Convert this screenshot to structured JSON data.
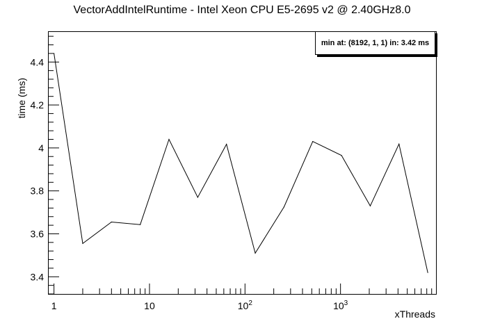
{
  "chart_data": {
    "type": "line",
    "title": "VectorAddIntelRuntime - Intel Xeon CPU E5-2695 v2 @ 2.40GHz8.0",
    "xlabel": "xThreads",
    "ylabel": "time (ms)",
    "x_scale": "log",
    "xlim": [
      0.88,
      10000
    ],
    "ylim": [
      3.32,
      4.54
    ],
    "grid": false,
    "x_tick_labels": [
      {
        "x": 1,
        "base": "1",
        "exp": ""
      },
      {
        "x": 10,
        "base": "10",
        "exp": ""
      },
      {
        "x": 100,
        "base": "10",
        "exp": "2"
      },
      {
        "x": 1000,
        "base": "10",
        "exp": "3"
      }
    ],
    "y_ticks": [
      3.4,
      3.6,
      3.8,
      4.0,
      4.2,
      4.4
    ],
    "y_tick_labels": [
      "3.4",
      "3.6",
      "3.8",
      "4",
      "4.2",
      "4.4"
    ],
    "series": [
      {
        "x": [
          1,
          2,
          4,
          8,
          16,
          32,
          64,
          128,
          256,
          512,
          1024,
          2048,
          4096,
          8192
        ],
        "values": [
          4.44,
          3.555,
          3.655,
          3.643,
          4.04,
          3.77,
          4.017,
          3.51,
          3.725,
          4.03,
          3.965,
          3.73,
          4.018,
          3.42
        ]
      }
    ],
    "annotation": "min at: (8192, 1, 1) in: 3.42 ms",
    "colors": {
      "line": "#000000",
      "background": "#ffffff",
      "frame": "#000000"
    }
  }
}
